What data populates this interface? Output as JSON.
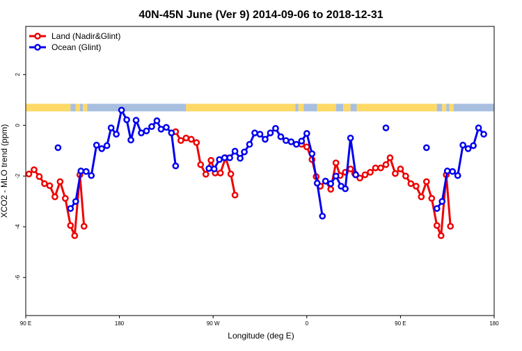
{
  "chart_data": {
    "type": "line",
    "title": "40N-45N June (Ver 9)   2014-09-06 to 2018-12-31",
    "xlabel": "Longitude (deg E)",
    "ylabel": "XCO2 - MLO trend (ppm)",
    "xlim": [
      90,
      540
    ],
    "ylim": [
      -7.5,
      3.9
    ],
    "x_ticks": [
      {
        "value": 90,
        "label": "90 E"
      },
      {
        "value": 180,
        "label": "180"
      },
      {
        "value": 270,
        "label": "90 W"
      },
      {
        "value": 360,
        "label": "0"
      },
      {
        "value": 450,
        "label": "90 E"
      },
      {
        "value": 540,
        "label": "180"
      }
    ],
    "y_ticks": [
      {
        "value": 2,
        "label": "2"
      },
      {
        "value": 0,
        "label": "0"
      },
      {
        "value": -2,
        "label": "-2"
      },
      {
        "value": -4,
        "label": "-4"
      },
      {
        "value": -6,
        "label": "-6"
      }
    ],
    "legend_position": "top-left",
    "grid": false,
    "series": [
      {
        "name": "Land (Nadir&Glint)",
        "color": "#ee0000",
        "segments": [
          [
            [
              93,
              -1.92
            ],
            [
              98,
              -1.75
            ],
            [
              103,
              -2.02
            ],
            [
              108,
              -2.3
            ],
            [
              113,
              -2.38
            ],
            [
              118,
              -2.82
            ],
            [
              123,
              -2.22
            ],
            [
              128,
              -2.88
            ],
            [
              133,
              -3.95
            ],
            [
              137,
              -4.35
            ],
            [
              142,
              -1.95
            ],
            [
              146,
              -3.98
            ]
          ],
          [
            [
              234,
              -0.25
            ],
            [
              239,
              -0.6
            ],
            [
              244,
              -0.5
            ],
            [
              249,
              -0.55
            ],
            [
              254,
              -0.68
            ],
            [
              258,
              -1.55
            ],
            [
              263,
              -1.93
            ],
            [
              268,
              -1.38
            ],
            [
              272,
              -1.88
            ],
            [
              277,
              -1.88
            ],
            [
              282,
              -1.28
            ],
            [
              287,
              -1.92
            ],
            [
              291,
              -2.75
            ]
          ],
          [
            [
              355,
              -0.75
            ],
            [
              360,
              -0.85
            ],
            [
              365,
              -1.35
            ],
            [
              369,
              -2.02
            ],
            [
              373,
              -2.4
            ],
            [
              378,
              -2.2
            ],
            [
              383,
              -2.52
            ],
            [
              388,
              -1.48
            ],
            [
              392,
              -1.98
            ],
            [
              397,
              -1.85
            ],
            [
              402,
              -1.72
            ],
            [
              406,
              -1.9
            ],
            [
              411,
              -2.08
            ],
            [
              416,
              -1.95
            ],
            [
              421,
              -1.85
            ],
            [
              426,
              -1.68
            ],
            [
              431,
              -1.68
            ],
            [
              436,
              -1.55
            ],
            [
              440,
              -1.28
            ],
            [
              445,
              -1.9
            ],
            [
              450,
              -1.72
            ],
            [
              455,
              -2.0
            ],
            [
              460,
              -2.3
            ],
            [
              465,
              -2.4
            ],
            [
              470,
              -2.82
            ],
            [
              475,
              -2.22
            ],
            [
              480,
              -2.88
            ],
            [
              485,
              -3.95
            ],
            [
              489,
              -4.35
            ],
            [
              494,
              -1.95
            ],
            [
              498,
              -3.98
            ]
          ]
        ]
      },
      {
        "name": "Ocean (Glint)",
        "color": "#0000ee",
        "segments": [
          [
            [
              121,
              -0.88
            ]
          ],
          [
            [
              133,
              -3.28
            ],
            [
              138,
              -3.0
            ],
            [
              143,
              -1.8
            ],
            [
              148,
              -1.82
            ],
            [
              153,
              -1.98
            ],
            [
              158,
              -0.78
            ],
            [
              163,
              -0.92
            ],
            [
              168,
              -0.8
            ],
            [
              172,
              -0.1
            ],
            [
              177,
              -0.35
            ],
            [
              182,
              0.6
            ],
            [
              187,
              0.22
            ],
            [
              191,
              -0.58
            ],
            [
              196,
              0.2
            ],
            [
              201,
              -0.3
            ],
            [
              206,
              -0.22
            ],
            [
              211,
              -0.05
            ],
            [
              216,
              0.18
            ],
            [
              220,
              -0.15
            ],
            [
              225,
              -0.08
            ],
            [
              230,
              -0.3
            ],
            [
              234,
              -1.6
            ]
          ],
          [
            [
              266,
              -1.7
            ],
            [
              271,
              -1.72
            ],
            [
              276,
              -1.35
            ],
            [
              281,
              -1.28
            ],
            [
              286,
              -1.28
            ],
            [
              291,
              -1.02
            ],
            [
              296,
              -1.3
            ],
            [
              300,
              -1.05
            ],
            [
              305,
              -0.75
            ],
            [
              310,
              -0.3
            ],
            [
              315,
              -0.35
            ],
            [
              320,
              -0.55
            ],
            [
              325,
              -0.3
            ],
            [
              330,
              -0.12
            ],
            [
              335,
              -0.45
            ],
            [
              340,
              -0.6
            ],
            [
              345,
              -0.65
            ],
            [
              350,
              -0.75
            ],
            [
              355,
              -0.62
            ],
            [
              360,
              -0.32
            ],
            [
              365,
              -1.12
            ],
            [
              370,
              -2.28
            ],
            [
              375,
              -3.58
            ]
          ],
          [
            [
              378,
              -2.2
            ],
            [
              383,
              -2.3
            ],
            [
              388,
              -2.0
            ],
            [
              393,
              -2.4
            ],
            [
              397,
              -2.5
            ],
            [
              402,
              -0.5
            ],
            [
              407,
              -1.95
            ]
          ],
          [
            [
              436,
              -0.1
            ]
          ],
          [
            [
              475,
              -0.88
            ]
          ],
          [
            [
              485,
              -3.28
            ],
            [
              490,
              -3.0
            ],
            [
              495,
              -1.8
            ],
            [
              500,
              -1.82
            ],
            [
              505,
              -1.98
            ],
            [
              510,
              -0.78
            ],
            [
              515,
              -0.92
            ],
            [
              520,
              -0.8
            ],
            [
              525,
              -0.1
            ],
            [
              530,
              -0.35
            ]
          ]
        ]
      }
    ],
    "surface_strip": {
      "y_range": [
        0.55,
        0.85
      ],
      "colors": {
        "land": "#ffd966",
        "ocean": "#a8bfe0"
      },
      "runs": [
        [
          90,
          133,
          "land"
        ],
        [
          133,
          138,
          "ocean"
        ],
        [
          138,
          142,
          "land"
        ],
        [
          142,
          145,
          "ocean"
        ],
        [
          145,
          149,
          "land"
        ],
        [
          149,
          244,
          "ocean"
        ],
        [
          244,
          349,
          "land"
        ],
        [
          349,
          352,
          "ocean"
        ],
        [
          352,
          357,
          "land"
        ],
        [
          357,
          370,
          "ocean"
        ],
        [
          370,
          388,
          "land"
        ],
        [
          388,
          395,
          "ocean"
        ],
        [
          395,
          402,
          "land"
        ],
        [
          402,
          408,
          "ocean"
        ],
        [
          408,
          485,
          "land"
        ],
        [
          485,
          490,
          "ocean"
        ],
        [
          490,
          494,
          "land"
        ],
        [
          494,
          497,
          "ocean"
        ],
        [
          497,
          501,
          "land"
        ],
        [
          501,
          540,
          "ocean"
        ]
      ]
    }
  }
}
